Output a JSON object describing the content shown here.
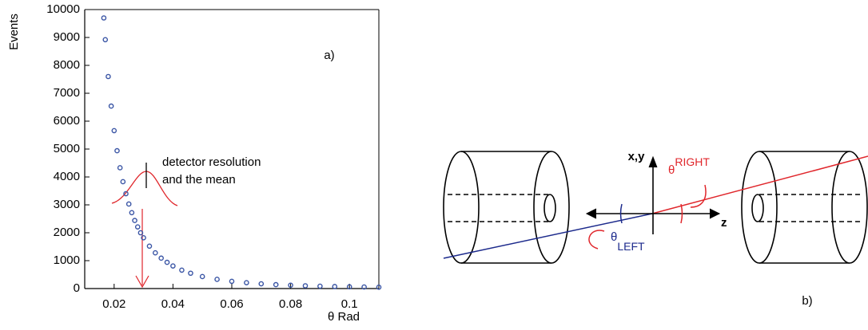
{
  "chart_data": {
    "type": "scatter",
    "x_label": "θ Rad",
    "y_label": "Events",
    "annotation_lines": [
      "detector resolution",
      "and the mean"
    ],
    "panel_label": "a)",
    "color": "#3a55a5",
    "x": [
      0.0165,
      0.017,
      0.018,
      0.019,
      0.02,
      0.021,
      0.022,
      0.023,
      0.024,
      0.025,
      0.026,
      0.027,
      0.028,
      0.029,
      0.03,
      0.032,
      0.034,
      0.036,
      0.038,
      0.04,
      0.043,
      0.046,
      0.05,
      0.055,
      0.06,
      0.065,
      0.07,
      0.075,
      0.08,
      0.085,
      0.09,
      0.095,
      0.1,
      0.105,
      0.11
    ],
    "values": [
      9700,
      8920,
      7600,
      6540,
      5660,
      4940,
      4330,
      3830,
      3400,
      3030,
      2720,
      2440,
      2210,
      2000,
      1820,
      1520,
      1280,
      1090,
      940,
      810,
      660,
      550,
      430,
      330,
      260,
      210,
      170,
      140,
      120,
      100,
      84,
      72,
      62,
      55,
      49
    ],
    "xlim": [
      0.01,
      0.11
    ],
    "xticks": [
      0.02,
      0.04,
      0.06,
      0.08,
      0.1
    ],
    "ylim": [
      0,
      10000
    ],
    "yticks": [
      0,
      1000,
      2000,
      3000,
      4000,
      5000,
      6000,
      7000,
      8000,
      9000,
      10000
    ]
  },
  "diagram": {
    "vertical_axis": "x,y",
    "horizontal_axis": "z",
    "right_angle": {
      "symbol": "θ",
      "superscript": "RIGHT"
    },
    "left_angle": {
      "symbol": "θ",
      "subscript": "LEFT"
    },
    "panel_label": "b)"
  }
}
